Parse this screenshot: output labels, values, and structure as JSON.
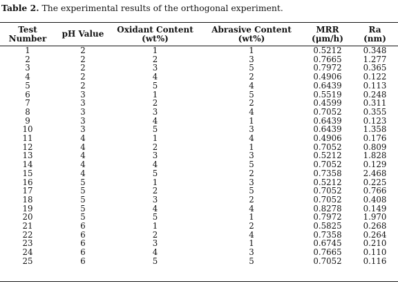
{
  "caption": {
    "label": "Table 2.",
    "text": " The experimental results of the orthogonal experiment."
  },
  "columns": [
    {
      "line1": "Test",
      "line2": "Number"
    },
    {
      "line1": "pH Value",
      "line2": ""
    },
    {
      "line1": "Oxidant Content",
      "line2": "(wt%)"
    },
    {
      "line1": "Abrasive Content",
      "line2": "(wt%)"
    },
    {
      "line1": "MRR",
      "line2": "(μm/h)"
    },
    {
      "line1": "Ra",
      "line2": "(nm)"
    }
  ],
  "rows": [
    [
      "1",
      "2",
      "1",
      "1",
      "0.5212",
      "0.348"
    ],
    [
      "2",
      "2",
      "2",
      "3",
      "0.7665",
      "1.277"
    ],
    [
      "3",
      "2",
      "3",
      "5",
      "0.7972",
      "0.365"
    ],
    [
      "4",
      "2",
      "4",
      "2",
      "0.4906",
      "0.122"
    ],
    [
      "5",
      "2",
      "5",
      "4",
      "0.6439",
      "0.113"
    ],
    [
      "6",
      "3",
      "1",
      "5",
      "0.5519",
      "0.248"
    ],
    [
      "7",
      "3",
      "2",
      "2",
      "0.4599",
      "0.311"
    ],
    [
      "8",
      "3",
      "3",
      "4",
      "0.7052",
      "0.355"
    ],
    [
      "9",
      "3",
      "4",
      "1",
      "0.6439",
      "0.123"
    ],
    [
      "10",
      "3",
      "5",
      "3",
      "0.6439",
      "1.358"
    ],
    [
      "11",
      "4",
      "1",
      "4",
      "0.4906",
      "0.176"
    ],
    [
      "12",
      "4",
      "2",
      "1",
      "0.7052",
      "0.809"
    ],
    [
      "13",
      "4",
      "3",
      "3",
      "0.5212",
      "1.828"
    ],
    [
      "14",
      "4",
      "4",
      "5",
      "0.7052",
      "0.129"
    ],
    [
      "15",
      "4",
      "5",
      "2",
      "0.7358",
      "2.468"
    ],
    [
      "16",
      "5",
      "1",
      "3",
      "0.5212",
      "0.225"
    ],
    [
      "17",
      "5",
      "2",
      "5",
      "0.7052",
      "0.766"
    ],
    [
      "18",
      "5",
      "3",
      "2",
      "0.7052",
      "0.408"
    ],
    [
      "19",
      "5",
      "4",
      "4",
      "0.8278",
      "0.149"
    ],
    [
      "20",
      "5",
      "5",
      "1",
      "0.7972",
      "1.970"
    ],
    [
      "21",
      "6",
      "1",
      "2",
      "0.5825",
      "0.268"
    ],
    [
      "22",
      "6",
      "2",
      "4",
      "0.7358",
      "0.264"
    ],
    [
      "23",
      "6",
      "3",
      "1",
      "0.6745",
      "0.210"
    ],
    [
      "24",
      "6",
      "4",
      "3",
      "0.7665",
      "0.110"
    ],
    [
      "25",
      "6",
      "5",
      "5",
      "0.7052",
      "0.116"
    ]
  ]
}
